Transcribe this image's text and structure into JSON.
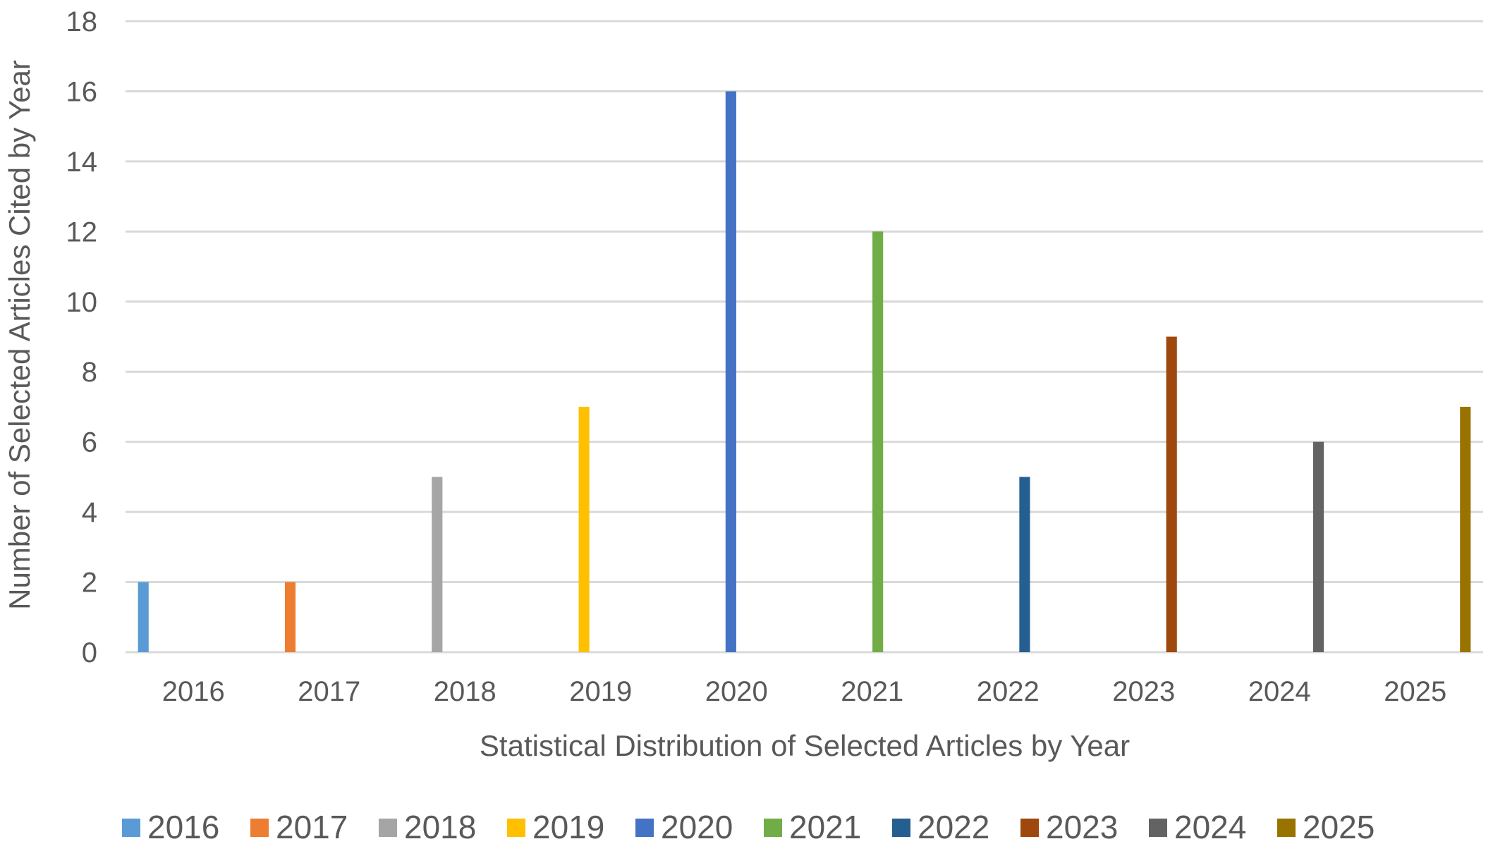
{
  "chart_data": {
    "type": "bar",
    "title": "",
    "xlabel": "Statistical Distribution of Selected Articles by Year",
    "ylabel": "Number of Selected Articles Cited by Year",
    "categories": [
      "2016",
      "2017",
      "2018",
      "2019",
      "2020",
      "2021",
      "2022",
      "2023",
      "2024",
      "2025"
    ],
    "ylim": [
      0,
      18
    ],
    "yticks": [
      0,
      2,
      4,
      6,
      8,
      10,
      12,
      14,
      16,
      18
    ],
    "grid": true,
    "legend_position": "bottom",
    "series": [
      {
        "name": "2016",
        "color": "#5B9BD5",
        "values": [
          2,
          null,
          null,
          null,
          null,
          null,
          null,
          null,
          null,
          null
        ]
      },
      {
        "name": "2017",
        "color": "#ED7D31",
        "values": [
          null,
          2,
          null,
          null,
          null,
          null,
          null,
          null,
          null,
          null
        ]
      },
      {
        "name": "2018",
        "color": "#A5A5A5",
        "values": [
          null,
          null,
          5,
          null,
          null,
          null,
          null,
          null,
          null,
          null
        ]
      },
      {
        "name": "2019",
        "color": "#FFC000",
        "values": [
          null,
          null,
          null,
          7,
          null,
          null,
          null,
          null,
          null,
          null
        ]
      },
      {
        "name": "2020",
        "color": "#4472C4",
        "values": [
          null,
          null,
          null,
          null,
          16,
          null,
          null,
          null,
          null,
          null
        ]
      },
      {
        "name": "2021",
        "color": "#70AD47",
        "values": [
          null,
          null,
          null,
          null,
          null,
          12,
          null,
          null,
          null,
          null
        ]
      },
      {
        "name": "2022",
        "color": "#255E91",
        "values": [
          null,
          null,
          null,
          null,
          null,
          null,
          5,
          null,
          null,
          null
        ]
      },
      {
        "name": "2023",
        "color": "#9E480E",
        "values": [
          null,
          null,
          null,
          null,
          null,
          null,
          null,
          9,
          null,
          null
        ]
      },
      {
        "name": "2024",
        "color": "#636363",
        "values": [
          null,
          null,
          null,
          null,
          null,
          null,
          null,
          null,
          6,
          null
        ]
      },
      {
        "name": "2025",
        "color": "#997300",
        "values": [
          null,
          null,
          null,
          null,
          null,
          null,
          null,
          null,
          null,
          7
        ]
      }
    ]
  }
}
